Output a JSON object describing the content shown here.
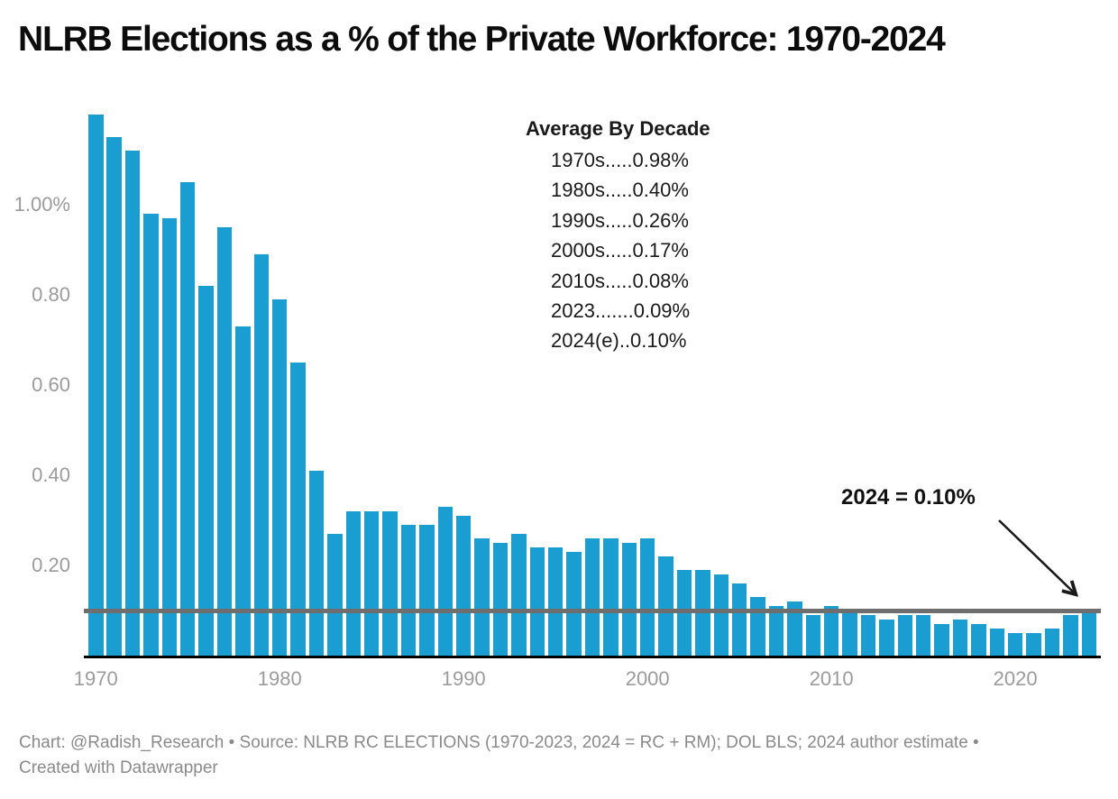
{
  "title": "NLRB Elections as a % of the Private Workforce: 1970-2024",
  "annotations": {
    "decade_box": {
      "heading": "Average By Decade",
      "rows": [
        "1970s.....0.98%",
        "1980s.....0.40%",
        "1990s.....0.26%",
        "2000s.....0.17%",
        "2010s.....0.08%",
        "2023.......0.09%",
        "2024(e)..0.10%"
      ]
    },
    "callout_2024": "2024 = 0.10%"
  },
  "chart_data": {
    "type": "bar",
    "title": "NLRB Elections as a % of the Private Workforce: 1970-2024",
    "xlabel": "",
    "ylabel": "",
    "unit": "%",
    "grid": false,
    "legend": false,
    "ylim": [
      0,
      1.24
    ],
    "years": [
      1970,
      1971,
      1972,
      1973,
      1974,
      1975,
      1976,
      1977,
      1978,
      1979,
      1980,
      1981,
      1982,
      1983,
      1984,
      1985,
      1986,
      1987,
      1988,
      1989,
      1990,
      1991,
      1992,
      1993,
      1994,
      1995,
      1996,
      1997,
      1998,
      1999,
      2000,
      2001,
      2002,
      2003,
      2004,
      2005,
      2006,
      2007,
      2008,
      2009,
      2010,
      2011,
      2012,
      2013,
      2014,
      2015,
      2016,
      2017,
      2018,
      2019,
      2020,
      2021,
      2022,
      2023,
      2024
    ],
    "values": [
      1.2,
      1.15,
      1.12,
      0.98,
      0.97,
      1.05,
      0.82,
      0.95,
      0.73,
      0.89,
      0.79,
      0.65,
      0.41,
      0.27,
      0.32,
      0.32,
      0.32,
      0.29,
      0.29,
      0.33,
      0.31,
      0.26,
      0.25,
      0.27,
      0.24,
      0.24,
      0.23,
      0.26,
      0.26,
      0.25,
      0.26,
      0.22,
      0.19,
      0.19,
      0.18,
      0.16,
      0.13,
      0.11,
      0.12,
      0.09,
      0.11,
      0.1,
      0.09,
      0.08,
      0.09,
      0.09,
      0.07,
      0.08,
      0.07,
      0.06,
      0.05,
      0.05,
      0.06,
      0.09,
      0.1
    ],
    "y_ticks": [
      {
        "label": "1.00%",
        "value": 1.0
      },
      {
        "label": "0.80",
        "value": 0.8
      },
      {
        "label": "0.60",
        "value": 0.6
      },
      {
        "label": "0.40",
        "value": 0.4
      },
      {
        "label": "0.20",
        "value": 0.2
      }
    ],
    "x_ticks": [
      "1970",
      "1980",
      "1990",
      "2000",
      "2010",
      "2020"
    ],
    "reference_line": {
      "value": 0.1
    },
    "bar_color": "#1a9dd0"
  },
  "icons": {
    "callout_arrow": "diagonal-arrow-icon"
  },
  "colors": {
    "bar": "#1a9dd0",
    "reference_line": "#6e6e6e",
    "baseline": "#000000",
    "tick_labels": "#9b9b9b",
    "annotation_text": "#1a1a1a",
    "footer_text": "#8a8a8a",
    "background": "#ffffff"
  },
  "footer": {
    "line1": "Chart: @Radish_Research • Source: NLRB RC ELECTIONS (1970-2023, 2024 = RC + RM); DOL BLS; 2024 author estimate •",
    "line2": "Created with Datawrapper"
  }
}
